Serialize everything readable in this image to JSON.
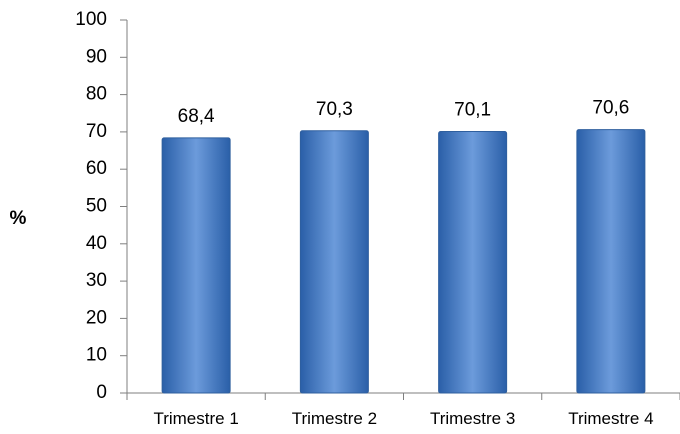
{
  "chart_data": {
    "type": "bar",
    "categories": [
      "Trimestre 1",
      "Trimestre 2",
      "Trimestre 3",
      "Trimestre 4"
    ],
    "values": [
      68.4,
      70.3,
      70.1,
      70.6
    ],
    "data_labels": [
      "68,4",
      "70,3",
      "70,1",
      "70,6"
    ],
    "ylabel": "%",
    "ylim": [
      0,
      100
    ],
    "yticks": [
      0,
      10,
      20,
      30,
      40,
      50,
      60,
      70,
      80,
      90,
      100
    ],
    "grid": false,
    "legend": "none",
    "bar_color": "#4A7FC8",
    "bar_color_dark": "#2A5FA8",
    "bar_color_light": "#6C9BDB"
  }
}
